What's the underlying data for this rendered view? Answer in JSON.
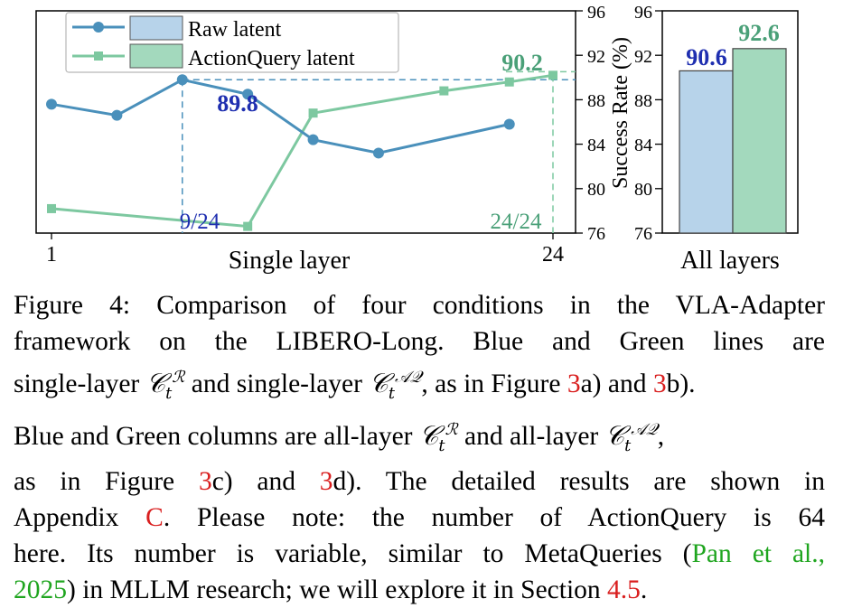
{
  "chart_data": [
    {
      "type": "line",
      "xlabel": "Single layer",
      "x_ticks": [
        "1",
        "24"
      ],
      "x": [
        1,
        4,
        7,
        10,
        13,
        16,
        19,
        22,
        24
      ],
      "ylim": [
        76,
        96
      ],
      "y_ticks": [
        "76",
        "80",
        "84",
        "88",
        "92",
        "96"
      ],
      "series": [
        {
          "name": "Raw latent",
          "color": "#4a90bb",
          "marker": "circle",
          "x": [
            1,
            4,
            7,
            10,
            13,
            16,
            19,
            22,
            24
          ],
          "values": [
            87.6,
            86.6,
            89.8,
            88.5,
            84.4,
            null,
            null,
            null,
            null
          ]
        },
        {
          "name": "ActionQuery latent",
          "color": "#7dc8a0",
          "marker": "square",
          "x": [
            1,
            4,
            7,
            10,
            13,
            16,
            19,
            22,
            24
          ],
          "values": [
            78.2,
            null,
            null,
            76.7,
            86.8,
            null,
            null,
            null,
            null
          ]
        }
      ],
      "annotations": [
        {
          "text": "89.8",
          "color": "#1f2fb0"
        },
        {
          "text": "90.2",
          "color": "#4aa078"
        },
        {
          "text": "9/24",
          "color": "#1f2fb0"
        },
        {
          "text": "24/24",
          "color": "#4aa078"
        }
      ]
    },
    {
      "type": "bar",
      "xlabel": "All layers",
      "ylabel": "Success Rate (%)",
      "ylim": [
        76,
        96
      ],
      "y_ticks": [
        "76",
        "80",
        "84",
        "88",
        "92",
        "96"
      ],
      "categories": [
        "Raw latent",
        "ActionQuery latent"
      ],
      "values": [
        90.6,
        92.6
      ],
      "value_labels": [
        "90.6",
        "92.6"
      ],
      "colors": [
        "#b7d3ea",
        "#a3d9bd"
      ],
      "label_colors": [
        "#1f2fb0",
        "#4aa078"
      ]
    }
  ],
  "legend": {
    "items": [
      "Raw latent",
      "ActionQuery latent"
    ]
  },
  "caption": {
    "l1_a": "Figure 4:  Comparison of four conditions in the VLA-Adapter",
    "l2_a": "framework on the LIBERO-Long.  Blue and Green lines are",
    "l3_a": "single-layer",
    "l3_m1": "𝒞",
    "l3_m1sub": "t",
    "l3_m1sup": "ℛ",
    "l3_b": "and single-layer",
    "l3_m2": "𝒞",
    "l3_m2sub": "t",
    "l3_m2sup": "𝒜𝒬",
    "l3_c": ", as in Figure",
    "l3_r1": "3",
    "l3_d": "a) and",
    "l3_r2": "3",
    "l3_e": "b).",
    "l4_a": "Blue and Green columns are all-layer",
    "l4_m1": "𝒞",
    "l4_m1sub": "t",
    "l4_m1sup": "ℛ",
    "l4_b": "and all-layer",
    "l4_m2": "𝒞",
    "l4_m2sub": "t",
    "l4_m2sup": "𝒜𝒬",
    "l4_c": ",",
    "l5_a": "as in Figure",
    "l5_r1": "3",
    "l5_b": "c) and",
    "l5_r2": "3",
    "l5_c": "d).  The detailed results are shown in",
    "l6_a": "Appendix",
    "l6_r1": "C",
    "l6_b": ". Please note:  the number of ActionQuery is 64",
    "l7_a": "here. Its number is variable, similar to MetaQueries (",
    "l7_g1": "Pan et al.,",
    "l8_g1": "2025",
    "l8_a": ") in MLLM research; we will explore it in Section",
    "l8_r1": "4.5",
    "l8_b": "."
  }
}
